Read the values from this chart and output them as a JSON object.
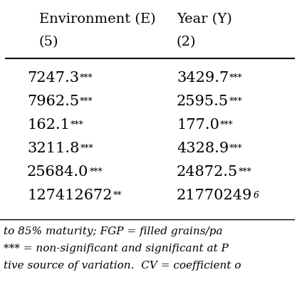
{
  "col_headers": [
    [
      "Environment (E)",
      "(5)"
    ],
    [
      "Year (Y)",
      "(2)"
    ]
  ],
  "rows": [
    [
      "7247.3",
      "***",
      "3429.7",
      "***"
    ],
    [
      "7962.5",
      "***",
      "2595.5",
      "***"
    ],
    [
      "162.1",
      "***",
      "177.0",
      "***"
    ],
    [
      "3211.8",
      "***",
      "4328.9",
      "***"
    ],
    [
      "25684.0",
      "***",
      "24872.5",
      "***"
    ],
    [
      "127412672",
      "**",
      "21770249",
      "6"
    ]
  ],
  "footer_lines": [
    "to 85% maturity; FGP = filled grains/pa",
    "*** = non-significant and significant at P",
    "tive source of variation.  CV = coefficient o"
  ],
  "bg_color": "#ffffff",
  "text_color": "#000000",
  "header_fontsize": 14,
  "data_fontsize": 15,
  "sup_fontsize": 9,
  "footer_fontsize": 11
}
